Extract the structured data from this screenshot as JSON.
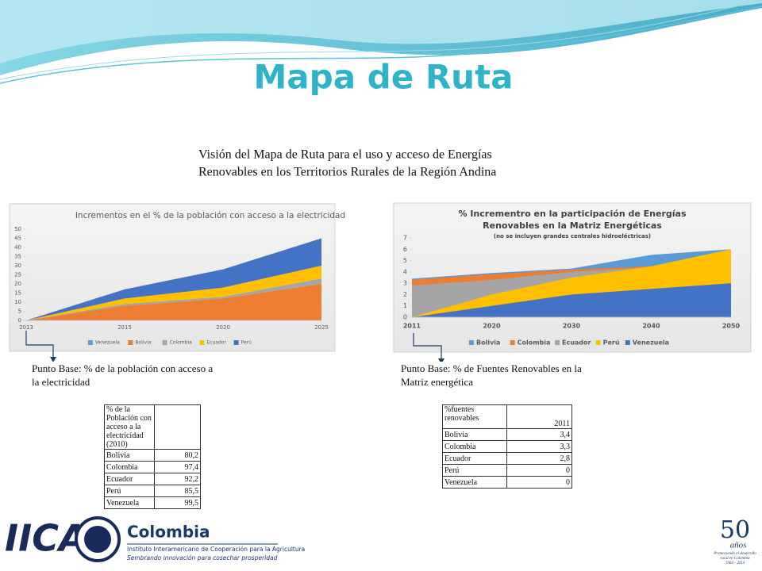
{
  "title": "Mapa de Ruta",
  "intro": [
    "Visión del Mapa de Ruta para el uso y acceso de Energías",
    "Renovables en los Territorios Rurales de la Región Andina"
  ],
  "chart_data": [
    {
      "type": "area",
      "stacked": true,
      "title": "Incrementos en el % de la población con acceso a la electricidad",
      "categories": [
        "2013",
        "2015",
        "2020",
        "2025"
      ],
      "series": [
        {
          "name": "Venezuela",
          "color": "#5b9bd5",
          "values": [
            0,
            0,
            0,
            0
          ]
        },
        {
          "name": "Bolivia",
          "color": "#ed7d31",
          "values": [
            0,
            8,
            12,
            20
          ]
        },
        {
          "name": "Colombia",
          "color": "#a5a5a5",
          "values": [
            0,
            1,
            1,
            3
          ]
        },
        {
          "name": "Ecuador",
          "color": "#ffc000",
          "values": [
            0,
            3,
            5,
            7
          ]
        },
        {
          "name": "Perú",
          "color": "#4472c4",
          "values": [
            0,
            5,
            10,
            15
          ]
        }
      ],
      "ylim": [
        0,
        50
      ],
      "yticks": [
        0,
        5,
        10,
        15,
        20,
        25,
        30,
        35,
        40,
        45,
        50
      ],
      "grid": false,
      "legend": "bottom"
    },
    {
      "type": "area",
      "stacked": false,
      "title": [
        "% Incrementro en la participación de Energías",
        "Renovables en la Matriz Energéticas"
      ],
      "subtitle": "(no se incluyen grandes centrales hidroeléctricas)",
      "categories": [
        "2011",
        "2020",
        "2030",
        "2040",
        "2050"
      ],
      "series": [
        {
          "name": "Bolivia",
          "color": "#5b9bd5",
          "values": [
            3.4,
            3.9,
            4.3,
            5.5,
            6
          ]
        },
        {
          "name": "Colombia",
          "color": "#ed7d31",
          "values": [
            3.3,
            3.8,
            4.2,
            4.5,
            5.9
          ]
        },
        {
          "name": "Ecuador",
          "color": "#a5a5a5",
          "values": [
            2.8,
            3.3,
            4,
            4.4,
            5.8
          ]
        },
        {
          "name": "Perú",
          "color": "#ffc000",
          "values": [
            0,
            2,
            3.5,
            4.5,
            6
          ]
        },
        {
          "name": "Venezuela",
          "color": "#4472c4",
          "values": [
            0,
            1,
            2,
            2.5,
            3
          ]
        }
      ],
      "ylim": [
        0,
        7
      ],
      "yticks": [
        0,
        1,
        2,
        3,
        4,
        5,
        6,
        7
      ],
      "grid": false,
      "legend": "bottom"
    }
  ],
  "base_labels": [
    "Punto Base: % de la población con acceso a la electricidad",
    "Punto Base: % de Fuentes Renovables en la Matriz energética"
  ],
  "tables": [
    {
      "header": [
        "% de la Población con acceso a la electricidad (2010)",
        ""
      ],
      "rows": [
        [
          "Bolivia",
          "80,2"
        ],
        [
          "Colombia",
          "97,4"
        ],
        [
          "Ecuador",
          "92,2"
        ],
        [
          "Perú",
          "85,5"
        ],
        [
          "Venezuela",
          "99,5"
        ]
      ]
    },
    {
      "header": [
        "%fuentes renovables",
        "2011"
      ],
      "rows": [
        [
          "Bolivia",
          "3,4"
        ],
        [
          "Colombia",
          "3,3"
        ],
        [
          "Ecuador",
          "2,8"
        ],
        [
          "Perú",
          "0"
        ],
        [
          "Venezuela",
          "0"
        ]
      ]
    }
  ],
  "footer": {
    "logo": "IICA",
    "country": "Colombia",
    "institute": "Instituto Interamericano de Cooperación para la Agricultura",
    "motto": "Sembrando innovación para cosechar prosperidad",
    "anniversary": "50",
    "anniversary_word": "años",
    "anniversary_text": [
      "Promoviendo el desarrollo",
      "rural en Colombia",
      "1964 - 2014"
    ]
  }
}
